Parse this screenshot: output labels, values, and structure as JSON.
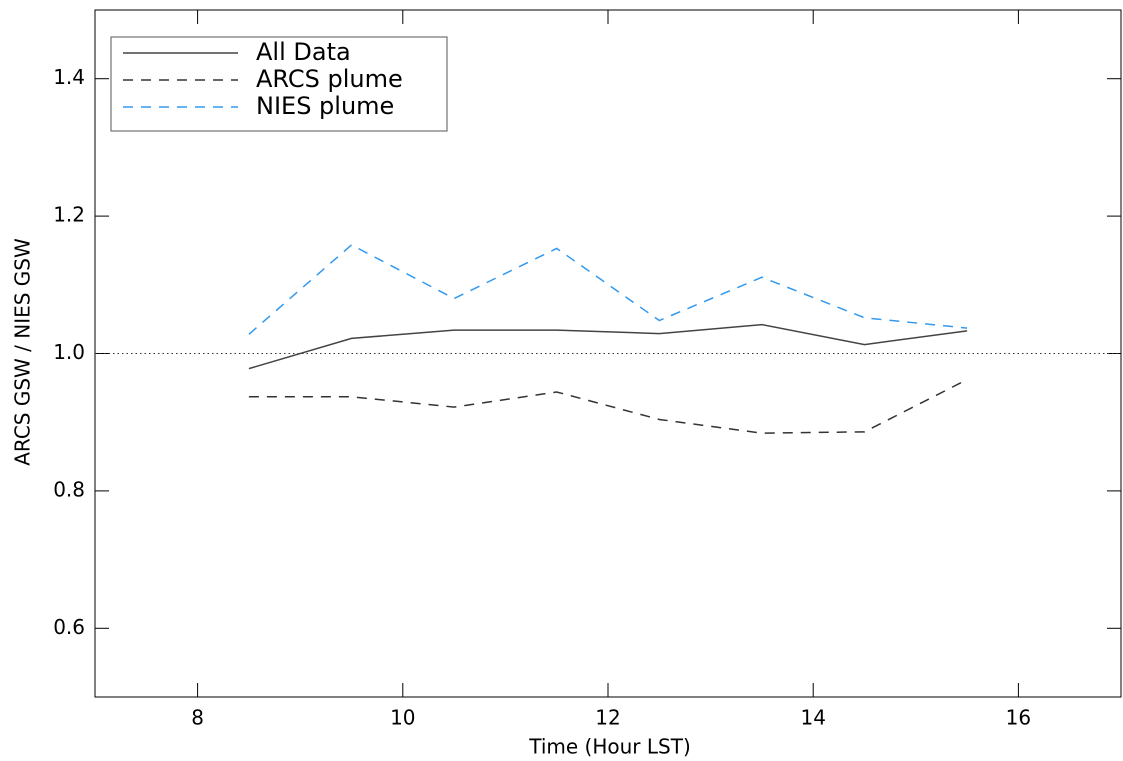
{
  "chart_data": {
    "type": "line",
    "x_label": "Time (Hour LST)",
    "y_label": "ARCS GSW / NIES GSW",
    "x": [
      8.5,
      9.5,
      10.5,
      11.5,
      12.5,
      13.5,
      14.5,
      15.5
    ],
    "series": [
      {
        "name": "All Data",
        "color": "#444444",
        "dash": "solid",
        "values": [
          0.978,
          1.022,
          1.034,
          1.034,
          1.029,
          1.042,
          1.013,
          1.033
        ]
      },
      {
        "name": "ARCS plume",
        "color": "#333333",
        "dash": "dashed",
        "values": [
          0.937,
          0.937,
          0.922,
          0.944,
          0.904,
          0.884,
          0.886,
          0.962
        ]
      },
      {
        "name": "NIES plume",
        "color": "#3399ee",
        "dash": "dashed",
        "values": [
          1.028,
          1.158,
          1.08,
          1.153,
          1.048,
          1.111,
          1.052,
          1.037
        ]
      }
    ],
    "reference_line": 1.0,
    "xlim": [
      7,
      17
    ],
    "xticks": [
      8,
      10,
      12,
      14,
      16
    ],
    "ylim": [
      0.5,
      1.5
    ],
    "yticks": [
      {
        "value": 0.6,
        "label": "0.6"
      },
      {
        "value": 0.8,
        "label": "0.8"
      },
      {
        "value": 1.0,
        "label": "1.0"
      },
      {
        "value": 1.2,
        "label": "1.2"
      },
      {
        "value": 1.4,
        "label": "1.4"
      }
    ],
    "legend": "upper left",
    "grid": false
  }
}
